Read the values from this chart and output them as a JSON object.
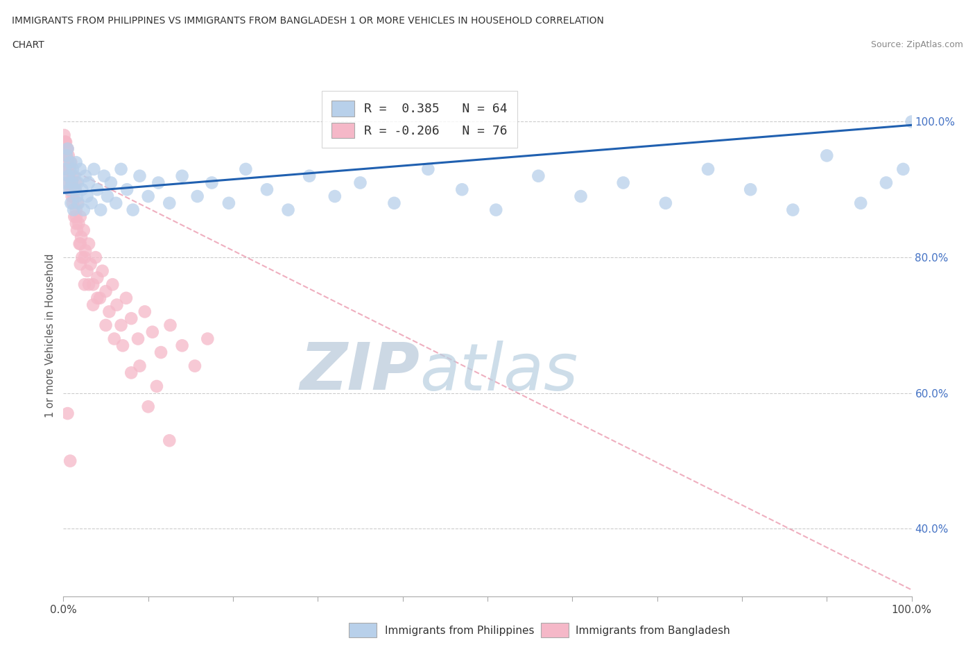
{
  "title_line1": "IMMIGRANTS FROM PHILIPPINES VS IMMIGRANTS FROM BANGLADESH 1 OR MORE VEHICLES IN HOUSEHOLD CORRELATION",
  "title_line2": "CHART",
  "source": "Source: ZipAtlas.com",
  "ylabel": "1 or more Vehicles in Household",
  "xlim": [
    0.0,
    1.0
  ],
  "ylim": [
    0.3,
    1.07
  ],
  "ytick_vals": [
    0.4,
    0.6,
    0.8,
    1.0
  ],
  "ytick_labels": [
    "40.0%",
    "60.0%",
    "80.0%",
    "100.0%"
  ],
  "legend_entries": [
    {
      "label": "R =  0.385   N = 64",
      "color": "#b8d0ea",
      "edge": "#7aafd4"
    },
    {
      "label": "R = -0.206   N = 76",
      "color": "#f5b8c8",
      "edge": "#e87a9a"
    }
  ],
  "ph": {
    "color_face": "#b8d0ea",
    "color_edge": "#7aafd4",
    "trend_color": "#2060b0",
    "trend_x0": 0.0,
    "trend_y0": 0.895,
    "trend_x1": 1.0,
    "trend_y1": 0.995,
    "x": [
      0.002,
      0.003,
      0.004,
      0.005,
      0.006,
      0.007,
      0.008,
      0.009,
      0.01,
      0.011,
      0.012,
      0.013,
      0.014,
      0.015,
      0.016,
      0.017,
      0.018,
      0.02,
      0.022,
      0.024,
      0.026,
      0.028,
      0.03,
      0.033,
      0.036,
      0.04,
      0.044,
      0.048,
      0.052,
      0.056,
      0.062,
      0.068,
      0.075,
      0.082,
      0.09,
      0.1,
      0.112,
      0.125,
      0.14,
      0.158,
      0.175,
      0.195,
      0.215,
      0.24,
      0.265,
      0.29,
      0.32,
      0.35,
      0.39,
      0.43,
      0.47,
      0.51,
      0.56,
      0.61,
      0.66,
      0.71,
      0.76,
      0.81,
      0.86,
      0.9,
      0.94,
      0.97,
      0.99,
      1.0
    ],
    "y": [
      0.93,
      0.91,
      0.95,
      0.96,
      0.92,
      0.9,
      0.94,
      0.88,
      0.91,
      0.93,
      0.87,
      0.92,
      0.9,
      0.94,
      0.89,
      0.91,
      0.88,
      0.93,
      0.9,
      0.87,
      0.92,
      0.89,
      0.91,
      0.88,
      0.93,
      0.9,
      0.87,
      0.92,
      0.89,
      0.91,
      0.88,
      0.93,
      0.9,
      0.87,
      0.92,
      0.89,
      0.91,
      0.88,
      0.92,
      0.89,
      0.91,
      0.88,
      0.93,
      0.9,
      0.87,
      0.92,
      0.89,
      0.91,
      0.88,
      0.93,
      0.9,
      0.87,
      0.92,
      0.89,
      0.91,
      0.88,
      0.93,
      0.9,
      0.87,
      0.95,
      0.88,
      0.91,
      0.93,
      1.0
    ]
  },
  "bd": {
    "color_face": "#f5b8c8",
    "color_edge": "#e87a9a",
    "trend_color": "#e06080",
    "trend_x0": 0.0,
    "trend_y0": 0.935,
    "trend_x1": 1.0,
    "trend_y1": 0.31,
    "x": [
      0.001,
      0.002,
      0.003,
      0.004,
      0.005,
      0.006,
      0.006,
      0.007,
      0.008,
      0.009,
      0.01,
      0.011,
      0.011,
      0.012,
      0.013,
      0.014,
      0.015,
      0.015,
      0.016,
      0.017,
      0.018,
      0.019,
      0.02,
      0.021,
      0.022,
      0.024,
      0.026,
      0.028,
      0.03,
      0.032,
      0.035,
      0.038,
      0.04,
      0.043,
      0.046,
      0.05,
      0.054,
      0.058,
      0.063,
      0.068,
      0.074,
      0.08,
      0.088,
      0.096,
      0.105,
      0.115,
      0.126,
      0.14,
      0.155,
      0.17,
      0.02,
      0.025,
      0.015,
      0.01,
      0.008,
      0.005,
      0.003,
      0.035,
      0.05,
      0.07,
      0.09,
      0.11,
      0.03,
      0.02,
      0.01,
      0.005,
      0.002,
      0.015,
      0.025,
      0.04,
      0.06,
      0.08,
      0.1,
      0.125,
      0.005,
      0.008
    ],
    "y": [
      0.98,
      0.97,
      0.95,
      0.96,
      0.93,
      0.91,
      0.95,
      0.92,
      0.9,
      0.94,
      0.91,
      0.88,
      0.92,
      0.89,
      0.86,
      0.9,
      0.87,
      0.91,
      0.84,
      0.88,
      0.85,
      0.82,
      0.86,
      0.83,
      0.8,
      0.84,
      0.81,
      0.78,
      0.82,
      0.79,
      0.76,
      0.8,
      0.77,
      0.74,
      0.78,
      0.75,
      0.72,
      0.76,
      0.73,
      0.7,
      0.74,
      0.71,
      0.68,
      0.72,
      0.69,
      0.66,
      0.7,
      0.67,
      0.64,
      0.68,
      0.79,
      0.76,
      0.85,
      0.89,
      0.93,
      0.96,
      0.97,
      0.73,
      0.7,
      0.67,
      0.64,
      0.61,
      0.76,
      0.82,
      0.9,
      0.94,
      0.97,
      0.86,
      0.8,
      0.74,
      0.68,
      0.63,
      0.58,
      0.53,
      0.57,
      0.5
    ]
  },
  "watermark_zip": "ZIP",
  "watermark_atlas": "atlas",
  "watermark_color": "#ccdde8",
  "background_color": "#ffffff",
  "grid_color": "#cccccc"
}
